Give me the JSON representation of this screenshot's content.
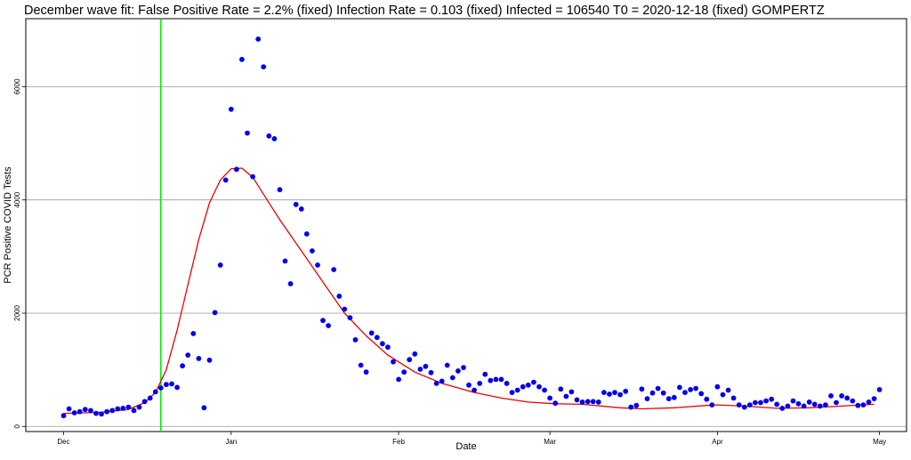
{
  "chart_data": {
    "type": "scatter",
    "title": "December wave fit: False Positive Rate = 2.2% (fixed) Infection Rate = 0.103 (fixed) Infected = 106540 T0 = 2020-12-18 (fixed) GOMPERTZ",
    "xlabel": "Date",
    "ylabel": "PCR Positive COVID Tests",
    "xlim": [
      "2020-11-24",
      "2021-05-06"
    ],
    "ylim": [
      -90,
      7200
    ],
    "grid": "horizontal",
    "x_ticks": [
      {
        "date": "2020-12-01",
        "label": "Dec"
      },
      {
        "date": "2021-01-01",
        "label": "Jan"
      },
      {
        "date": "2021-02-01",
        "label": "Feb"
      },
      {
        "date": "2021-03-01",
        "label": "Mar"
      },
      {
        "date": "2021-04-01",
        "label": "Apr"
      },
      {
        "date": "2021-05-01",
        "label": "May"
      }
    ],
    "y_ticks": [
      0,
      2000,
      4000,
      6000
    ],
    "vertical_line": {
      "date": "2020-12-19",
      "color": "#00ee00"
    },
    "observed": {
      "color": "#0000ee",
      "start_date": "2020-12-01",
      "values": [
        190,
        310,
        240,
        260,
        300,
        280,
        230,
        220,
        260,
        280,
        310,
        320,
        340,
        280,
        340,
        440,
        500,
        610,
        680,
        740,
        750,
        690,
        1070,
        1260,
        1640,
        1200,
        330,
        1170,
        2010,
        2850,
        4350,
        5600,
        4540,
        6480,
        5180,
        4410,
        6840,
        6350,
        5130,
        5080,
        4180,
        2920,
        2520,
        3920,
        3840,
        3400,
        3100,
        2850,
        1870,
        1780,
        2770,
        2300,
        2070,
        1920,
        1530,
        1080,
        960,
        1650,
        1570,
        1460,
        1400,
        1140,
        830,
        960,
        1180,
        1280,
        1010,
        1060,
        950,
        760,
        800,
        1080,
        860,
        980,
        1040,
        730,
        640,
        760,
        920,
        810,
        830,
        830,
        760,
        600,
        640,
        700,
        730,
        780,
        700,
        640,
        500,
        410,
        660,
        530,
        610,
        470,
        430,
        440,
        440,
        430,
        600,
        570,
        600,
        560,
        620,
        340,
        370,
        660,
        490,
        590,
        670,
        590,
        490,
        510,
        690,
        600,
        650,
        670,
        580,
        480,
        380,
        700,
        560,
        640,
        500,
        380,
        340,
        380,
        420,
        420,
        450,
        480,
        390,
        320,
        360,
        450,
        400,
        360,
        430,
        390,
        360,
        380,
        540,
        420,
        540,
        500,
        450,
        370,
        380,
        430,
        490,
        650
      ]
    },
    "fit": {
      "color": "#ee0000",
      "model": "GOMPERTZ",
      "points": [
        [
          "2020-12-01",
          230
        ],
        [
          "2020-12-08",
          250
        ],
        [
          "2020-12-13",
          300
        ],
        [
          "2020-12-16",
          420
        ],
        [
          "2020-12-18",
          600
        ],
        [
          "2020-12-20",
          1000
        ],
        [
          "2020-12-22",
          1700
        ],
        [
          "2020-12-24",
          2500
        ],
        [
          "2020-12-26",
          3300
        ],
        [
          "2020-12-28",
          3950
        ],
        [
          "2020-12-30",
          4350
        ],
        [
          "2021-01-01",
          4550
        ],
        [
          "2021-01-03",
          4560
        ],
        [
          "2021-01-05",
          4400
        ],
        [
          "2021-01-07",
          4100
        ],
        [
          "2021-01-10",
          3650
        ],
        [
          "2021-01-14",
          3100
        ],
        [
          "2021-01-18",
          2550
        ],
        [
          "2021-01-22",
          2000
        ],
        [
          "2021-01-26",
          1600
        ],
        [
          "2021-01-30",
          1260
        ],
        [
          "2021-02-04",
          960
        ],
        [
          "2021-02-09",
          760
        ],
        [
          "2021-02-15",
          600
        ],
        [
          "2021-02-20",
          500
        ],
        [
          "2021-02-25",
          430
        ],
        [
          "2021-03-02",
          400
        ],
        [
          "2021-03-07",
          390
        ],
        [
          "2021-03-14",
          330
        ],
        [
          "2021-03-18",
          310
        ],
        [
          "2021-03-24",
          330
        ],
        [
          "2021-03-30",
          370
        ],
        [
          "2021-04-01",
          380
        ],
        [
          "2021-04-06",
          360
        ],
        [
          "2021-04-12",
          320
        ],
        [
          "2021-04-18",
          330
        ],
        [
          "2021-04-24",
          360
        ],
        [
          "2021-04-30",
          390
        ]
      ]
    }
  }
}
